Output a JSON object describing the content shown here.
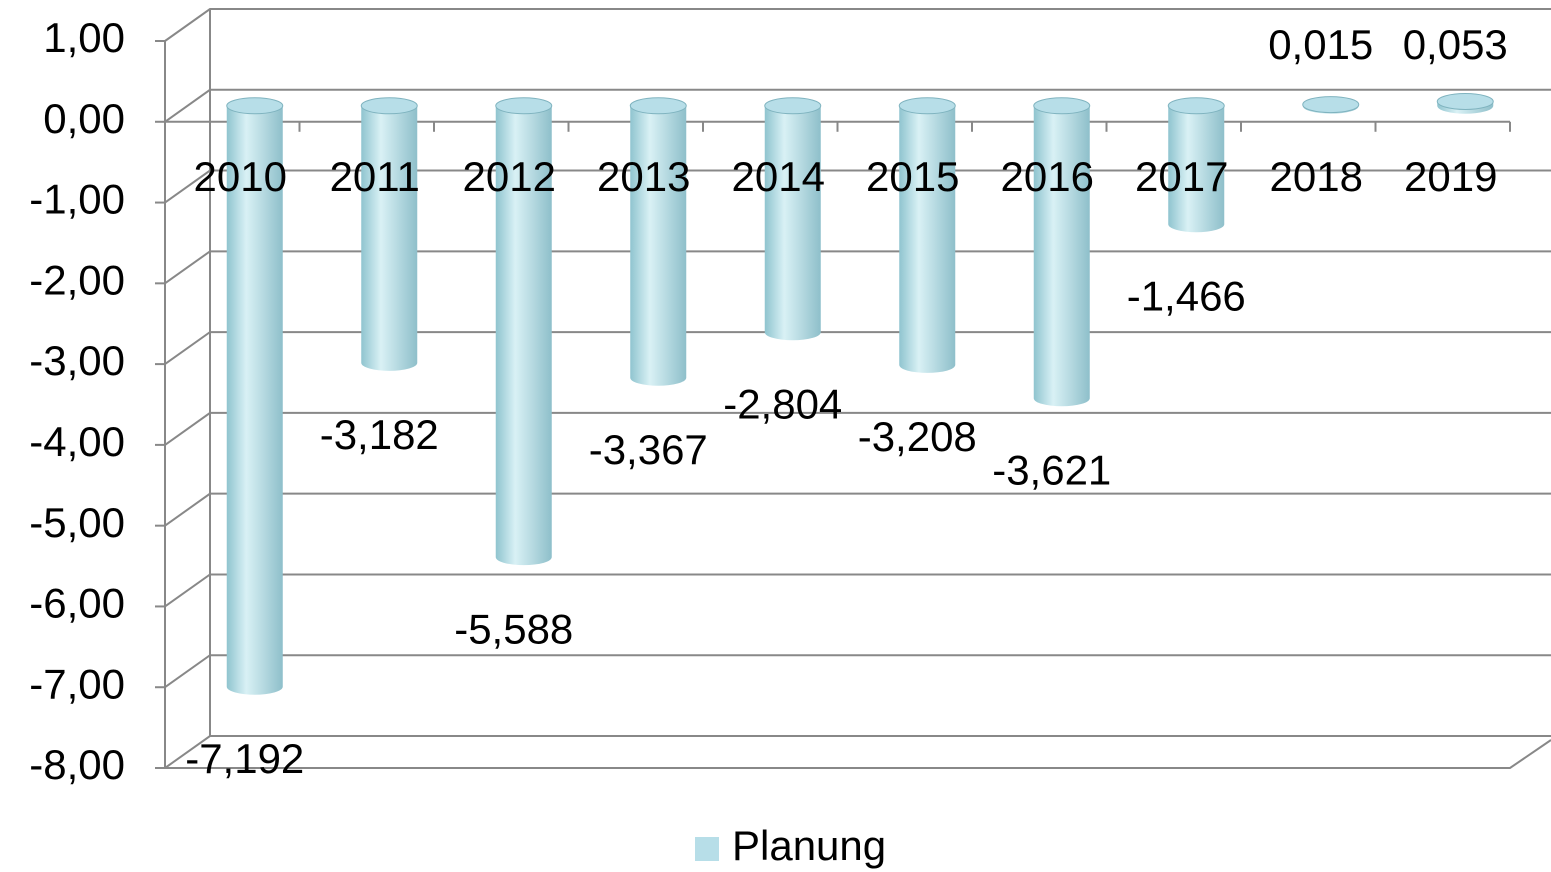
{
  "chart_data": {
    "type": "bar3d",
    "categories": [
      "2010",
      "2011",
      "2012",
      "2013",
      "2014",
      "2015",
      "2016",
      "2017",
      "2018",
      "2019"
    ],
    "series": [
      {
        "name": "Planung",
        "color": "#b7dee8",
        "values": [
          -7.192,
          -3.182,
          -5.588,
          -3.367,
          -2.804,
          -3.208,
          -3.621,
          -1.466,
          0.015,
          0.053
        ],
        "value_labels": [
          "-7,192",
          "-3,182",
          "-5,588",
          "-3,367",
          "-2,804",
          "-3,208",
          "-3,621",
          "-1,466",
          "0,015",
          "0,053"
        ]
      }
    ],
    "ylim": [
      -8,
      1
    ],
    "yticks": [
      {
        "value": 1,
        "label": "1,00"
      },
      {
        "value": 0,
        "label": "0,00"
      },
      {
        "value": -1,
        "label": "-1,00"
      },
      {
        "value": -2,
        "label": "-2,00"
      },
      {
        "value": -3,
        "label": "-3,00"
      },
      {
        "value": -4,
        "label": "-4,00"
      },
      {
        "value": -5,
        "label": "-5,00"
      },
      {
        "value": -6,
        "label": "-6,00"
      },
      {
        "value": -7,
        "label": "-7,00"
      },
      {
        "value": -8,
        "label": "-8,00"
      }
    ],
    "grid": true,
    "legend": "bottom"
  }
}
